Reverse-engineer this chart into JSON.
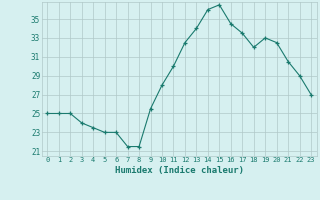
{
  "xlabel": "Humidex (Indice chaleur)",
  "x": [
    0,
    1,
    2,
    3,
    4,
    5,
    6,
    7,
    8,
    9,
    10,
    11,
    12,
    13,
    14,
    15,
    16,
    17,
    18,
    19,
    20,
    21,
    22,
    23
  ],
  "y": [
    25,
    25,
    25,
    24,
    23.5,
    23,
    23,
    21.5,
    21.5,
    25.5,
    28,
    30,
    32.5,
    34,
    36,
    36.5,
    34.5,
    33.5,
    32,
    33,
    32.5,
    30.5,
    29,
    27
  ],
  "line_color": "#1a7a6e",
  "marker": "+",
  "marker_size": 3,
  "marker_color": "#1a7a6e",
  "bg_color": "#d6f0f0",
  "grid_color": "#b0c8c8",
  "tick_color": "#1a7a6e",
  "label_color": "#1a7a6e",
  "yticks": [
    21,
    23,
    25,
    27,
    29,
    31,
    33,
    35
  ],
  "xticks": [
    0,
    1,
    2,
    3,
    4,
    5,
    6,
    7,
    8,
    9,
    10,
    11,
    12,
    13,
    14,
    15,
    16,
    17,
    18,
    19,
    20,
    21,
    22,
    23
  ],
  "xlim": [
    -0.5,
    23.5
  ],
  "ylim": [
    20.5,
    36.8
  ]
}
